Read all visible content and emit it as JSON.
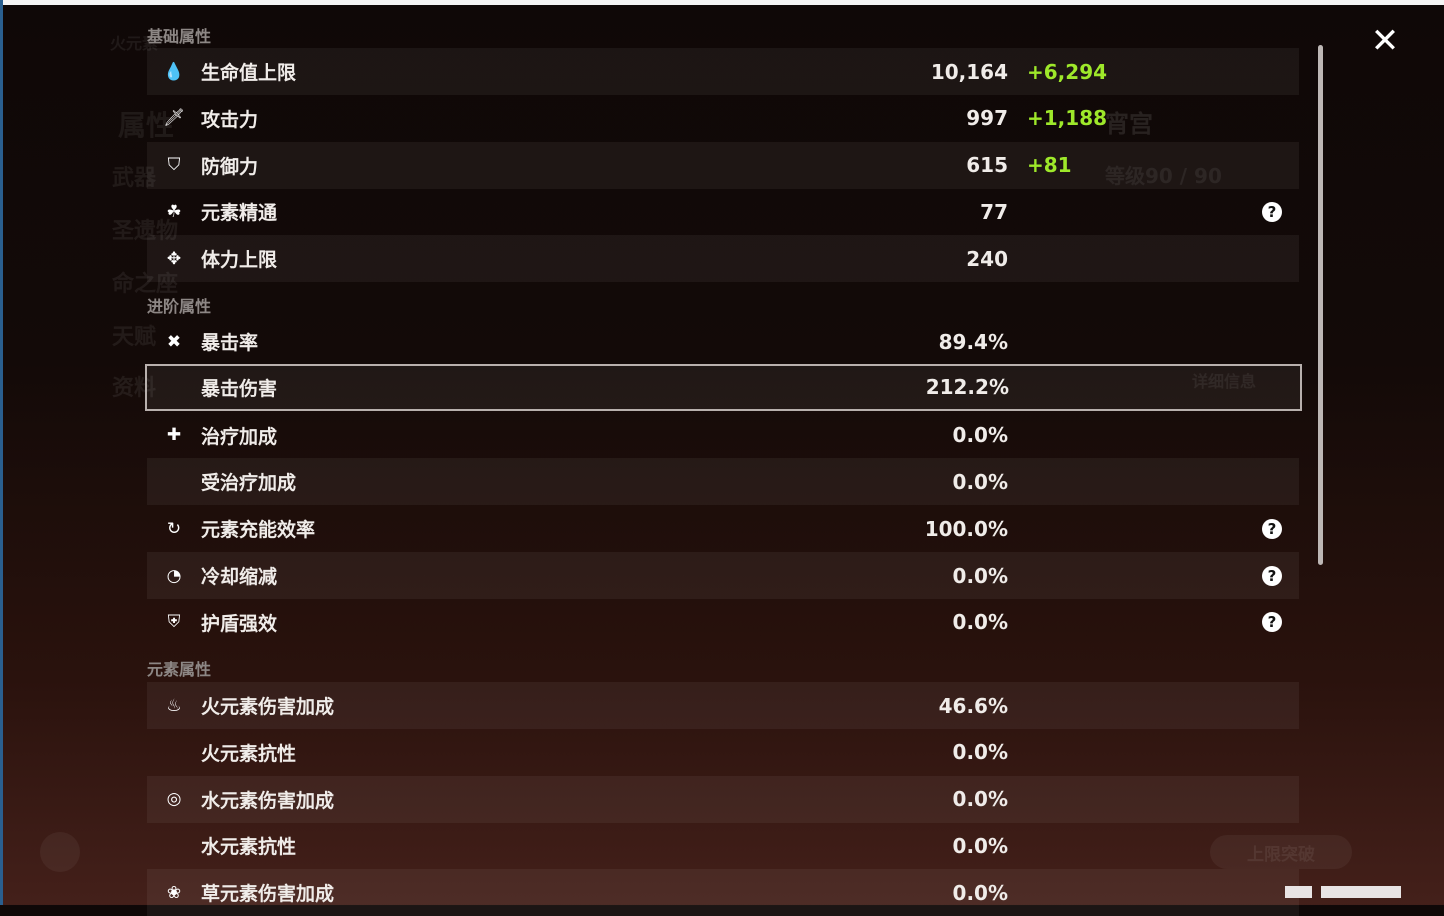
{
  "background": {
    "character_name": "宵宫",
    "element_title": "火元素",
    "level": "等级90 / 90",
    "menu": [
      "属性",
      "武器",
      "圣遗物",
      "命之座",
      "天赋",
      "资料"
    ],
    "details_button": "详细信息",
    "ascend_button": "上限突破"
  },
  "sections": [
    {
      "title": "基础属性",
      "rows": [
        {
          "icon": "hp-drop-icon",
          "label": "生命值上限",
          "value": "10,164",
          "bonus": "+6,294"
        },
        {
          "icon": "sword-icon",
          "label": "攻击力",
          "value": "997",
          "bonus": "+1,188"
        },
        {
          "icon": "shield-icon",
          "label": "防御力",
          "value": "615",
          "bonus": "+81"
        },
        {
          "icon": "elemental-mastery-icon",
          "label": "元素精通",
          "value": "77",
          "help": true
        },
        {
          "icon": "stamina-icon",
          "label": "体力上限",
          "value": "240"
        }
      ]
    },
    {
      "title": "进阶属性",
      "rows": [
        {
          "icon": "crit-icon",
          "label": "暴击率",
          "value": "89.4%"
        },
        {
          "icon": "",
          "label": "暴击伤害",
          "value": "212.2%",
          "selected": true
        },
        {
          "icon": "healing-cross-icon",
          "label": "治疗加成",
          "value": "0.0%"
        },
        {
          "icon": "",
          "label": "受治疗加成",
          "value": "0.0%"
        },
        {
          "icon": "energy-recharge-icon",
          "label": "元素充能效率",
          "value": "100.0%",
          "help": true
        },
        {
          "icon": "cooldown-icon",
          "label": "冷却缩减",
          "value": "0.0%",
          "help": true
        },
        {
          "icon": "shield-strength-icon",
          "label": "护盾强效",
          "value": "0.0%",
          "help": true
        }
      ]
    },
    {
      "title": "元素属性",
      "rows": [
        {
          "icon": "pyro-icon",
          "label": "火元素伤害加成",
          "value": "46.6%"
        },
        {
          "icon": "",
          "label": "火元素抗性",
          "value": "0.0%"
        },
        {
          "icon": "hydro-icon",
          "label": "水元素伤害加成",
          "value": "0.0%"
        },
        {
          "icon": "",
          "label": "水元素抗性",
          "value": "0.0%"
        },
        {
          "icon": "dendro-icon",
          "label": "草元素伤害加成",
          "value": "0.0%"
        }
      ]
    }
  ],
  "colors": {
    "bonus": "#9ee82a",
    "text": "#f0ece9",
    "section": "#8d8785"
  }
}
